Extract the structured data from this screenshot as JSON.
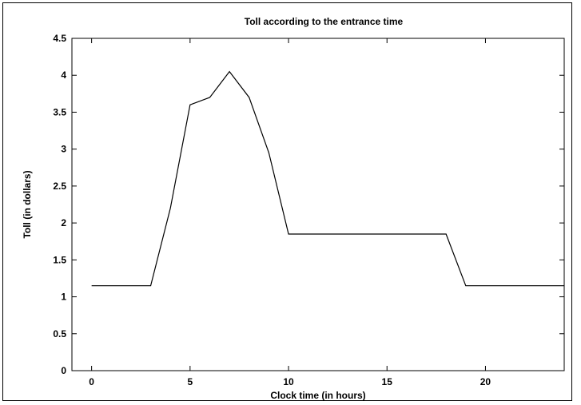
{
  "chart_data": {
    "type": "line",
    "title": "Toll according to the entrance time",
    "xlabel": "Clock time   (in hours)",
    "ylabel": "Toll (in dollars)",
    "xlim": [
      -1,
      24
    ],
    "ylim": [
      0,
      4.5
    ],
    "x_ticks": [
      "0",
      "5",
      "10",
      "15",
      "20"
    ],
    "y_ticks": [
      "0",
      "0.5",
      "1",
      "1.5",
      "2",
      "2.5",
      "3",
      "3.5",
      "4",
      "4.5"
    ],
    "grid": false,
    "series": [
      {
        "color": "#000000",
        "x": [
          0,
          3,
          4,
          5,
          6,
          7,
          8,
          9,
          10,
          11,
          12,
          13,
          14,
          15,
          16,
          17,
          18,
          19,
          20,
          21,
          22,
          23,
          24
        ],
        "y": [
          1.15,
          1.15,
          2.2,
          3.6,
          3.7,
          4.05,
          3.7,
          2.95,
          1.85,
          1.85,
          1.85,
          1.85,
          1.85,
          1.85,
          1.85,
          1.85,
          1.85,
          1.15,
          1.15,
          1.15,
          1.15,
          1.15,
          1.15
        ]
      }
    ]
  }
}
